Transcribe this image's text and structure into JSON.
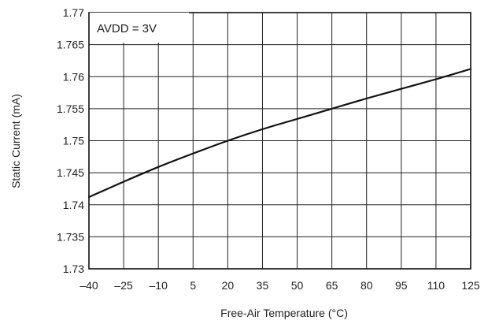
{
  "chart_data": {
    "type": "line",
    "title": "",
    "xlabel": "Free-Air Temperature (°C)",
    "ylabel": "Static Current (mA)",
    "xlim": [
      -40,
      125
    ],
    "ylim": [
      1.73,
      1.77
    ],
    "x_ticks": [
      -40,
      -25,
      -10,
      5,
      20,
      35,
      50,
      65,
      80,
      95,
      110,
      125
    ],
    "x_tick_labels": [
      "–40",
      "–25",
      "–10",
      "5",
      "20",
      "35",
      "50",
      "65",
      "80",
      "95",
      "110",
      "125"
    ],
    "y_ticks": [
      1.73,
      1.735,
      1.74,
      1.745,
      1.75,
      1.755,
      1.76,
      1.765,
      1.77
    ],
    "y_tick_labels": [
      "1.73",
      "1.735",
      "1.74",
      "1.745",
      "1.75",
      "1.755",
      "1.76",
      "1.765",
      "1.77"
    ],
    "grid": true,
    "annotation": "AVDD = 3V",
    "series": [
      {
        "x": [
          -40,
          -25,
          -10,
          5,
          20,
          35,
          50,
          65,
          80,
          95,
          110,
          125
        ],
        "y": [
          1.7412,
          1.7436,
          1.7459,
          1.748,
          1.75,
          1.7518,
          1.7534,
          1.755,
          1.7566,
          1.7581,
          1.7596,
          1.7612
        ]
      }
    ],
    "colors": {
      "line": "#111111",
      "grid": "#222222",
      "frame": "#111111",
      "background": "#ffffff"
    }
  }
}
